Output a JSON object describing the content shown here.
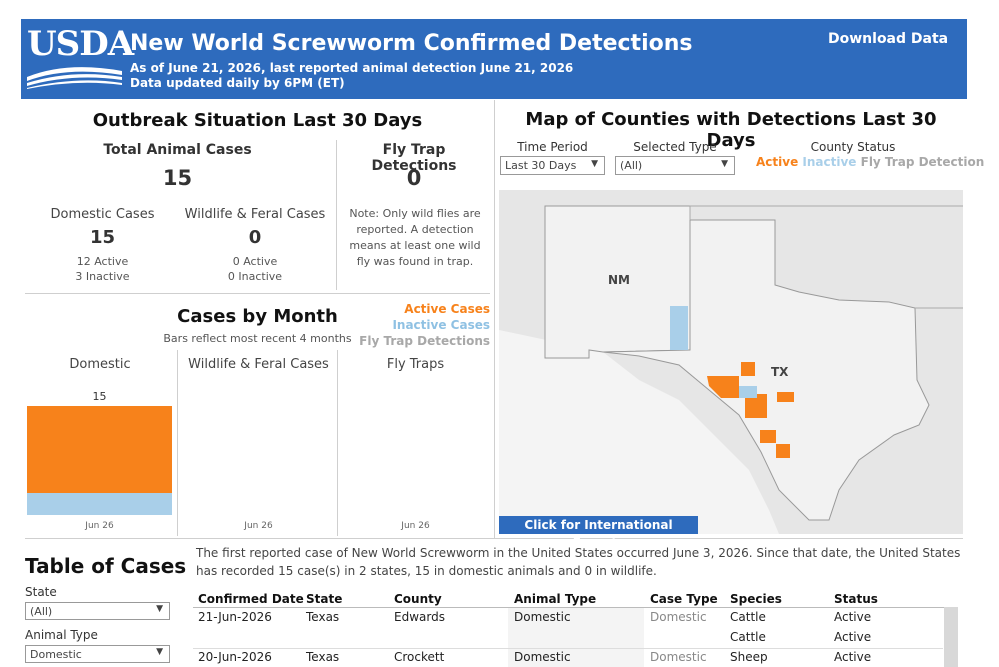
{
  "header": {
    "logo_text": "USDA",
    "title": "New World Screwworm Confirmed Detections",
    "subtitle_line1": "As of June 21, 2026, last reported animal detection June 21, 2026",
    "subtitle_line2": "Data updated daily by 6PM (ET)",
    "download_label": "Download Data"
  },
  "outbreak": {
    "title": "Outbreak Situation Last 30 Days",
    "total_label": "Total Animal Cases",
    "total_value": "15",
    "domestic_label": "Domestic Cases",
    "domestic_value": "15",
    "domestic_active": "12 Active",
    "domestic_inactive": "3 Inactive",
    "wildlife_label": "Wildlife & Feral Cases",
    "wildlife_value": "0",
    "wildlife_active": "0 Active",
    "wildlife_inactive": "0 Inactive",
    "flytrap_label": "Fly Trap Detections",
    "flytrap_value": "0",
    "flytrap_note": "Note: Only wild flies are reported. A detection means at least one wild fly was found in trap."
  },
  "cases_by_month": {
    "title": "Cases by Month",
    "subtitle": "Bars reflect most recent 4 months",
    "legend": {
      "active": "Active Cases",
      "inactive": "Inactive Cases",
      "flytrap": "Fly Trap Detections"
    },
    "colors": {
      "active": "#f7821b",
      "inactive": "#a9cfe9",
      "flytrap": "#a8a8a8"
    },
    "panels": [
      {
        "label": "Domestic",
        "month": "Jun 26",
        "total_label": "15"
      },
      {
        "label": "Wildlife & Feral Cases",
        "month": "Jun 26",
        "total_label": ""
      },
      {
        "label": "Fly Traps",
        "month": "Jun 26",
        "total_label": ""
      }
    ]
  },
  "chart_data": {
    "type": "bar",
    "title": "Cases by Month",
    "categories": [
      "Jun 26"
    ],
    "series": [
      {
        "name": "Active Cases",
        "values": [
          12
        ]
      },
      {
        "name": "Inactive Cases",
        "values": [
          3
        ]
      }
    ],
    "total": 15
  },
  "map": {
    "title": "Map of Counties with Detections Last 30 Days",
    "time_period_label": "Time Period",
    "time_period_value": "Last 30 Days",
    "selected_type_label": "Selected Type",
    "selected_type_value": "(All)",
    "county_status_label": "County Status",
    "status_active": "Active",
    "status_inactive": "Inactive",
    "status_flytrap": "Fly Trap Detection",
    "state_nm": "NM",
    "state_tx": "TX",
    "intl_button": "Click for International Exports"
  },
  "table": {
    "title": "Table of Cases",
    "state_filter_label": "State",
    "state_filter_value": "(All)",
    "animal_filter_label": "Animal Type",
    "animal_filter_value": "Domestic",
    "intro": "The first reported case of New World Screwworm in the United States occurred June 3, 2026. Since that date, the United States has recorded 15 case(s) in 2 states, 15 in domestic animals and 0 in wildlife.",
    "columns": [
      "Confirmed Date",
      "State",
      "County",
      "Animal Type",
      "Case Type",
      "Species",
      "Status"
    ],
    "rows": [
      {
        "date": "21-Jun-2026",
        "state": "Texas",
        "county": "Edwards",
        "animal": "Domestic",
        "case_type": "Domestic",
        "species": "Cattle",
        "status": "Active"
      },
      {
        "date": "",
        "state": "",
        "county": "",
        "animal": "",
        "case_type": "",
        "species": "Cattle",
        "status": "Active"
      },
      {
        "date": "20-Jun-2026",
        "state": "Texas",
        "county": "Crockett",
        "animal": "Domestic",
        "case_type": "Domestic",
        "species": "Sheep",
        "status": "Active"
      }
    ]
  }
}
